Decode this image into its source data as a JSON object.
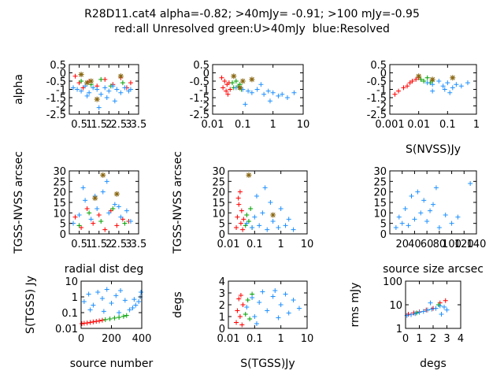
{
  "figure": {
    "title_line1": "R28D11.cat4 alpha=-0.82; >40mJy= -0.91; >100 mJy=-0.95",
    "title_line2": "red:all Unresolved\u001d green:U>40mJy \u001d blue:Resolved"
  },
  "colors": {
    "red": "#ff0000",
    "green": "#00a000",
    "blue": "#1e90ff",
    "star": "#8b6914"
  },
  "chart_data": [
    {
      "type": "scatter",
      "ylabel": "alpha",
      "xlabel": "",
      "xlim": [
        0,
        3.5
      ],
      "ylim": [
        -2.5,
        0.5
      ],
      "xscale": "linear",
      "yscale": "linear",
      "xticks": [
        "0.5",
        "1",
        "1.5",
        "2",
        "2.5",
        "3",
        "3.5"
      ],
      "yticks": [
        "0.5",
        "0",
        "-0.5",
        "-1",
        "-1.5",
        "-2",
        "-2.5"
      ],
      "x_tick_values": [
        0.5,
        1,
        1.5,
        2,
        2.5,
        3,
        3.5
      ],
      "y_tick_values": [
        0.5,
        0,
        -0.5,
        -1,
        -1.5,
        -2,
        -2.5
      ],
      "series": [
        {
          "color": "red",
          "marker": "+",
          "x": [
            0.3,
            0.5,
            0.7,
            1.0,
            1.4,
            1.8,
            2.2,
            2.6,
            2.9,
            3.1
          ],
          "y": [
            -0.2,
            -0.6,
            -0.9,
            -0.5,
            -0.8,
            -0.4,
            -0.7,
            -0.3,
            -0.9,
            -0.6
          ]
        },
        {
          "color": "green",
          "marker": "+",
          "x": [
            0.6,
            1.1,
            1.6,
            2.1,
            2.7
          ],
          "y": [
            -0.5,
            -0.7,
            -0.4,
            -0.8,
            -0.6
          ]
        },
        {
          "color": "blue",
          "marker": "+",
          "x": [
            0.2,
            0.4,
            0.6,
            0.8,
            1.0,
            1.2,
            1.4,
            1.6,
            1.8,
            2.0,
            2.2,
            2.4,
            2.6,
            2.8,
            3.0,
            3.1,
            1.5,
            2.3,
            0.9,
            1.9
          ],
          "y": [
            -0.9,
            -1.0,
            -1.1,
            -0.8,
            -1.2,
            -0.9,
            -1.0,
            -1.3,
            -0.9,
            -1.1,
            -0.8,
            -1.0,
            -1.2,
            -0.9,
            -1.1,
            -1.0,
            -2.1,
            -1.7,
            -1.4,
            -1.5
          ]
        },
        {
          "color": "star",
          "marker": "*",
          "x": [
            0.6,
            1.1,
            2.6,
            0.9,
            1.4
          ],
          "y": [
            -0.1,
            -0.5,
            -0.2,
            -0.6,
            -1.6
          ]
        }
      ]
    },
    {
      "type": "scatter",
      "ylabel": "",
      "xlabel": "",
      "xlim": [
        0.01,
        10
      ],
      "ylim": [
        -2.5,
        0.5
      ],
      "xscale": "log",
      "yscale": "linear",
      "xticks": [
        "0.01",
        "0.1",
        "1",
        "10"
      ],
      "yticks": [
        "0.5",
        "0",
        "-0.5",
        "-1",
        "-1.5",
        "-2",
        "-2.5"
      ],
      "x_tick_values": [
        0.01,
        0.1,
        1,
        10
      ],
      "y_tick_values": [
        0.5,
        0,
        -0.5,
        -1,
        -1.5,
        -2,
        -2.5
      ],
      "series": [
        {
          "color": "red",
          "marker": "+",
          "x": [
            0.02,
            0.022,
            0.025,
            0.028,
            0.03,
            0.032,
            0.035,
            0.038
          ],
          "y": [
            -0.3,
            -0.9,
            -0.5,
            -1.1,
            -0.7,
            -1.3,
            -0.6,
            -1.0
          ]
        },
        {
          "color": "green",
          "marker": "+",
          "x": [
            0.045,
            0.05,
            0.06,
            0.07,
            0.08,
            0.09
          ],
          "y": [
            -0.6,
            -0.9,
            -0.5,
            -0.8,
            -0.7,
            -1.0
          ]
        },
        {
          "color": "blue",
          "marker": "+",
          "x": [
            0.06,
            0.1,
            0.15,
            0.2,
            0.3,
            0.5,
            0.7,
            1.0,
            1.5,
            2.0,
            3.0,
            5.0,
            0.12,
            0.4,
            0.8
          ],
          "y": [
            -0.9,
            -1.0,
            -1.1,
            -1.2,
            -1.0,
            -1.3,
            -1.1,
            -1.2,
            -1.4,
            -1.3,
            -1.5,
            -1.2,
            -1.9,
            -0.7,
            -1.7
          ]
        },
        {
          "color": "star",
          "marker": "*",
          "x": [
            0.05,
            0.1,
            0.2,
            0.08
          ],
          "y": [
            -0.2,
            -0.5,
            -0.4,
            -0.9
          ]
        }
      ]
    },
    {
      "type": "scatter",
      "ylabel": "",
      "xlabel": "S(NVSS)Jy",
      "xlim": [
        0.001,
        1
      ],
      "ylim": [
        -2.5,
        0.5
      ],
      "xscale": "log",
      "yscale": "linear",
      "xticks": [
        "0.001",
        "0.01",
        "0.1",
        "1"
      ],
      "yticks": [
        "0.5",
        "0",
        "-0.5",
        "-1",
        "-1.5",
        "-2",
        "-2.5"
      ],
      "x_tick_values": [
        0.001,
        0.01,
        0.1,
        1
      ],
      "y_tick_values": [
        0.5,
        0,
        -0.5,
        -1,
        -1.5,
        -2,
        -2.5
      ],
      "series": [
        {
          "color": "red",
          "marker": "+",
          "x": [
            0.0015,
            0.002,
            0.003,
            0.004,
            0.005,
            0.006,
            0.008,
            0.01
          ],
          "y": [
            -1.3,
            -1.1,
            -0.9,
            -0.8,
            -0.6,
            -0.5,
            -0.4,
            -0.3
          ]
        },
        {
          "color": "green",
          "marker": "+",
          "x": [
            0.012,
            0.015,
            0.02,
            0.025,
            0.03
          ],
          "y": [
            -0.4,
            -0.5,
            -0.3,
            -0.6,
            -0.5
          ]
        },
        {
          "color": "blue",
          "marker": "+",
          "x": [
            0.02,
            0.03,
            0.05,
            0.07,
            0.1,
            0.15,
            0.2,
            0.3,
            0.5,
            0.03,
            0.08,
            0.12
          ],
          "y": [
            -0.6,
            -0.7,
            -0.5,
            -0.8,
            -0.6,
            -0.9,
            -0.7,
            -0.8,
            -0.6,
            -1.1,
            -1.0,
            -1.2
          ]
        },
        {
          "color": "star",
          "marker": "*",
          "x": [
            0.01,
            0.03,
            0.15
          ],
          "y": [
            -0.2,
            -0.4,
            -0.3
          ]
        }
      ]
    },
    {
      "type": "scatter",
      "ylabel": "TGSS-NVSS arcsec",
      "xlabel": "radial dist deg",
      "xlim": [
        0,
        3.5
      ],
      "ylim": [
        0,
        30
      ],
      "xscale": "linear",
      "yscale": "linear",
      "xticks": [
        "0.5",
        "1",
        "1.5",
        "2",
        "2.5",
        "3",
        "3.5"
      ],
      "yticks": [
        "0",
        "5",
        "10",
        "15",
        "20",
        "25",
        "30"
      ],
      "x_tick_values": [
        0.5,
        1,
        1.5,
        2,
        2.5,
        3,
        3.5
      ],
      "y_tick_values": [
        0,
        5,
        10,
        15,
        20,
        25,
        30
      ],
      "series": [
        {
          "color": "red",
          "marker": "+",
          "x": [
            0.3,
            0.6,
            0.9,
            1.2,
            1.5,
            1.8,
            2.1,
            2.4,
            2.7,
            3.0
          ],
          "y": [
            8,
            3,
            12,
            5,
            9,
            2,
            11,
            4,
            7,
            6
          ]
        },
        {
          "color": "green",
          "marker": "+",
          "x": [
            0.5,
            1.0,
            1.6,
            2.2,
            2.8
          ],
          "y": [
            4,
            10,
            6,
            12,
            5
          ]
        },
        {
          "color": "blue",
          "marker": "+",
          "x": [
            0.2,
            0.5,
            0.8,
            1.1,
            1.4,
            1.7,
            2.0,
            2.3,
            2.6,
            2.9,
            3.1,
            0.7,
            1.3,
            1.9,
            2.5
          ],
          "y": [
            5,
            9,
            16,
            7,
            12,
            20,
            10,
            14,
            8,
            11,
            6,
            22,
            18,
            25,
            13
          ]
        },
        {
          "color": "star",
          "marker": "*",
          "x": [
            1.7,
            1.3,
            2.4
          ],
          "y": [
            28,
            17,
            19
          ]
        }
      ]
    },
    {
      "type": "scatter",
      "ylabel": "TGSS-NVSS arcsec",
      "xlabel": "",
      "xlim": [
        0.01,
        10
      ],
      "ylim": [
        0,
        30
      ],
      "xscale": "log",
      "yscale": "linear",
      "xticks": [
        "0.01",
        "0.1",
        "1",
        "10"
      ],
      "yticks": [
        "0",
        "5",
        "10",
        "15",
        "20",
        "25",
        "30"
      ],
      "x_tick_values": [
        0.01,
        0.1,
        1,
        10
      ],
      "y_tick_values": [
        0,
        5,
        10,
        15,
        20,
        25,
        30
      ],
      "series": [
        {
          "color": "red",
          "marker": "+",
          "x": [
            0.02,
            0.022,
            0.025,
            0.028,
            0.03,
            0.032,
            0.035,
            0.038,
            0.024
          ],
          "y": [
            3,
            8,
            14,
            20,
            5,
            11,
            2,
            7,
            17
          ]
        },
        {
          "color": "green",
          "marker": "+",
          "x": [
            0.045,
            0.05,
            0.06,
            0.07,
            0.08
          ],
          "y": [
            4,
            9,
            6,
            12,
            3
          ]
        },
        {
          "color": "blue",
          "marker": "+",
          "x": [
            0.05,
            0.08,
            0.1,
            0.15,
            0.2,
            0.3,
            0.5,
            0.8,
            1.0,
            1.5,
            2.0,
            3.0,
            0.12,
            0.4,
            0.25
          ],
          "y": [
            5,
            3,
            8,
            4,
            10,
            2,
            6,
            3,
            12,
            4,
            7,
            2,
            18,
            15,
            22
          ]
        },
        {
          "color": "star",
          "marker": "*",
          "x": [
            0.06,
            0.5
          ],
          "y": [
            28,
            9
          ]
        }
      ]
    },
    {
      "type": "scatter",
      "ylabel": "",
      "xlabel": "source size arcsec",
      "xlim": [
        0,
        140
      ],
      "ylim": [
        0,
        30
      ],
      "xscale": "linear",
      "yscale": "linear",
      "xticks": [
        "20",
        "40",
        "60",
        "80",
        "100",
        "120",
        "140"
      ],
      "yticks": [
        "0",
        "5",
        "10",
        "15",
        "20",
        "25",
        "30"
      ],
      "x_tick_values": [
        20,
        40,
        60,
        80,
        100,
        120,
        140
      ],
      "y_tick_values": [
        0,
        5,
        10,
        15,
        20,
        25,
        30
      ],
      "series": [
        {
          "color": "blue",
          "marker": "+",
          "x": [
            10,
            15,
            20,
            25,
            30,
            35,
            40,
            50,
            60,
            70,
            80,
            90,
            100,
            110,
            130,
            45,
            55,
            65,
            75
          ],
          "y": [
            3,
            8,
            5,
            12,
            4,
            18,
            7,
            10,
            6,
            14,
            3,
            9,
            5,
            8,
            24,
            20,
            16,
            11,
            22
          ]
        }
      ]
    },
    {
      "type": "scatter",
      "ylabel": "S(TGSS) Jy",
      "xlabel": "source number",
      "xlim": [
        0,
        400
      ],
      "ylim": [
        0.01,
        10
      ],
      "xscale": "linear",
      "yscale": "log",
      "xticks": [
        "0",
        "200",
        "400"
      ],
      "yticks": [
        "10",
        "1",
        "0.1",
        "0.01"
      ],
      "x_tick_values": [
        0,
        200,
        400
      ],
      "y_tick_values": [
        10,
        1,
        0.1,
        0.01
      ],
      "series": [
        {
          "color": "red",
          "marker": "+",
          "x": [
            5,
            20,
            40,
            60,
            80,
            100,
            120,
            140
          ],
          "y": [
            0.02,
            0.021,
            0.022,
            0.024,
            0.026,
            0.028,
            0.03,
            0.033
          ]
        },
        {
          "color": "green",
          "marker": "+",
          "x": [
            160,
            190,
            220,
            250,
            280,
            300
          ],
          "y": [
            0.036,
            0.04,
            0.045,
            0.05,
            0.058,
            0.066
          ]
        },
        {
          "color": "blue",
          "marker": "+",
          "x": [
            20,
            50,
            80,
            110,
            140,
            170,
            200,
            230,
            260,
            290,
            320,
            340,
            360,
            380,
            390,
            395,
            60,
            150,
            250,
            350
          ],
          "y": [
            0.5,
            1.5,
            0.3,
            2.0,
            0.8,
            3.0,
            0.4,
            1.2,
            2.5,
            0.6,
            0.15,
            0.2,
            0.3,
            0.5,
            1.0,
            2.0,
            0.15,
            0.12,
            0.1,
            0.7
          ]
        }
      ]
    },
    {
      "type": "scatter",
      "ylabel": "degs",
      "xlabel": "S(TGSS)Jy",
      "xlim": [
        0.01,
        10
      ],
      "ylim": [
        0,
        4
      ],
      "xscale": "log",
      "yscale": "linear",
      "xticks": [
        "0.01",
        "0.1",
        "1",
        "10"
      ],
      "yticks": [
        "0",
        "1",
        "2",
        "3",
        "4"
      ],
      "x_tick_values": [
        0.01,
        0.1,
        1,
        10
      ],
      "y_tick_values": [
        0,
        1,
        2,
        3,
        4
      ],
      "series": [
        {
          "color": "red",
          "marker": "+",
          "x": [
            0.02,
            0.022,
            0.025,
            0.028,
            0.03,
            0.033,
            0.036
          ],
          "y": [
            0.5,
            1.5,
            2.5,
            1.0,
            2.8,
            0.3,
            2.0
          ]
        },
        {
          "color": "green",
          "marker": "+",
          "x": [
            0.045,
            0.055,
            0.065,
            0.08
          ],
          "y": [
            1.2,
            2.4,
            0.8,
            2.9
          ]
        },
        {
          "color": "blue",
          "marker": "+",
          "x": [
            0.05,
            0.08,
            0.1,
            0.15,
            0.2,
            0.3,
            0.5,
            0.8,
            1.0,
            1.5,
            2.0,
            3.0,
            5.0,
            0.12,
            0.6
          ],
          "y": [
            1.8,
            2.6,
            1.0,
            2.2,
            3.1,
            1.5,
            2.7,
            0.9,
            2.0,
            2.9,
            1.3,
            2.4,
            1.7,
            0.4,
            3.2
          ]
        }
      ]
    },
    {
      "type": "scatter",
      "ylabel": "rms mJy",
      "xlabel": "degs",
      "xlim": [
        0,
        4
      ],
      "ylim": [
        1,
        100
      ],
      "xscale": "linear",
      "yscale": "log",
      "xticks": [
        "0",
        "1",
        "2",
        "3",
        "4"
      ],
      "yticks": [
        "100",
        "10",
        "1"
      ],
      "x_tick_values": [
        0,
        1,
        2,
        3,
        4
      ],
      "y_tick_values": [
        100,
        10,
        1
      ],
      "series": [
        {
          "color": "red",
          "marker": "+",
          "x": [
            0.2,
            0.6,
            1.0,
            1.5,
            2.0,
            2.5,
            2.9
          ],
          "y": [
            4,
            4.5,
            5,
            6,
            7,
            12,
            15
          ]
        },
        {
          "color": "green",
          "marker": "+",
          "x": [
            0.8,
            1.6,
            2.4
          ],
          "y": [
            4.5,
            6,
            10
          ]
        },
        {
          "color": "blue",
          "marker": "+",
          "x": [
            0.1,
            0.4,
            0.7,
            1.0,
            1.3,
            1.6,
            1.9,
            2.2,
            2.5,
            2.8,
            3.0,
            1.8,
            2.6
          ],
          "y": [
            3.5,
            3.8,
            4.2,
            4.8,
            5.2,
            6,
            6.5,
            7,
            9,
            8,
            6,
            12,
            4
          ]
        }
      ]
    }
  ]
}
